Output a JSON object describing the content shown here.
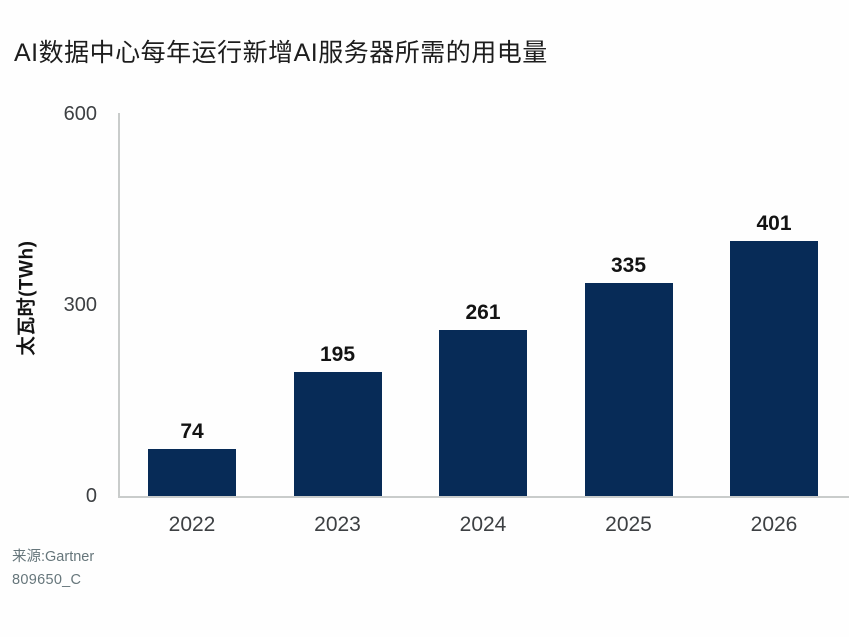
{
  "title": "AI数据中心每年运行新增AI服务器所需的用电量",
  "chart_data": {
    "type": "bar",
    "title": "AI数据中心每年运行新增AI服务器所需的用电量",
    "categories": [
      "2022",
      "2023",
      "2024",
      "2025",
      "2026"
    ],
    "values": [
      74,
      195,
      261,
      335,
      401
    ],
    "xlabel": "",
    "ylabel": "太瓦时(TWh)",
    "ylim": [
      0,
      600
    ],
    "yticks": [
      0,
      300,
      600
    ],
    "bar_color": "#072b57",
    "axis_color": "#c9cccb",
    "value_label_color": "#131313",
    "tick_label_color": "#3d4043",
    "grid": false,
    "legend_position": "none",
    "value_labels_shown": true
  },
  "source": {
    "line1": "来源:Gartner",
    "line2": "809650_C"
  }
}
